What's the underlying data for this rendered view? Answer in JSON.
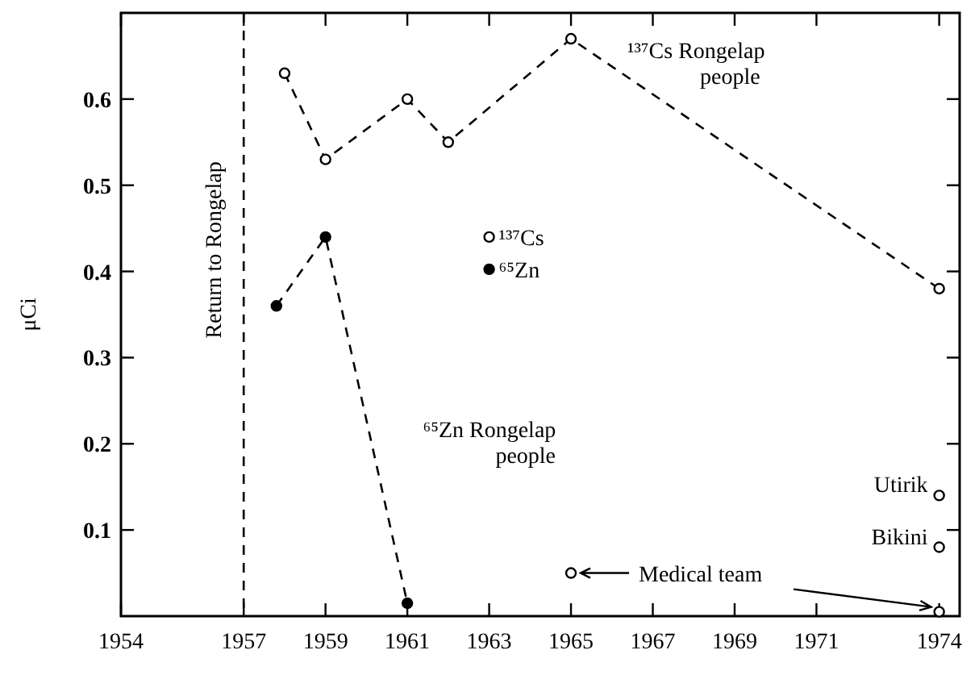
{
  "chart_data": {
    "type": "line",
    "ylabel": "μCi",
    "xlim": [
      1954,
      1974.5
    ],
    "ylim": [
      0,
      0.7
    ],
    "xticks": [
      1954,
      1957,
      1959,
      1961,
      1963,
      1965,
      1967,
      1969,
      1971,
      1974
    ],
    "yticks": [
      0.1,
      0.2,
      0.3,
      0.4,
      0.5,
      0.6
    ],
    "line_style": "dashed",
    "marker": "circle",
    "grid": false,
    "legend": "center",
    "series": [
      {
        "name": "¹³⁷Cs",
        "color": "#000000",
        "x": [
          1958,
          1959,
          1961,
          1962,
          1965,
          1974
        ],
        "values": [
          0.63,
          0.53,
          0.6,
          0.55,
          0.67,
          0.38
        ]
      },
      {
        "name": "⁶⁵Zn",
        "color": "#000000",
        "x": [
          1957.8,
          1959,
          1961
        ],
        "values": [
          0.36,
          0.44,
          0.015
        ]
      },
      {
        "name": "Utirik",
        "type": "scatter",
        "color": "#000000",
        "x": [
          1974
        ],
        "values": [
          0.14
        ]
      },
      {
        "name": "Bikini",
        "type": "scatter",
        "color": "#000000",
        "x": [
          1974
        ],
        "values": [
          0.08
        ]
      },
      {
        "name": "Medical team",
        "type": "scatter",
        "color": "#000000",
        "x": [
          1965,
          1974
        ],
        "values": [
          0.05,
          0.005
        ]
      }
    ],
    "annotations": [
      {
        "text": "¹³⁷Cs Rongelap people",
        "x": 1965,
        "y": 0.67
      },
      {
        "text": "⁶⁵Zn Rongelap people",
        "x": 1960,
        "y": 0.23
      }
    ],
    "ref_lines": [
      {
        "axis": "x",
        "value": 1957,
        "label": "Return to Rongelap",
        "line_style": "dashed"
      }
    ]
  }
}
